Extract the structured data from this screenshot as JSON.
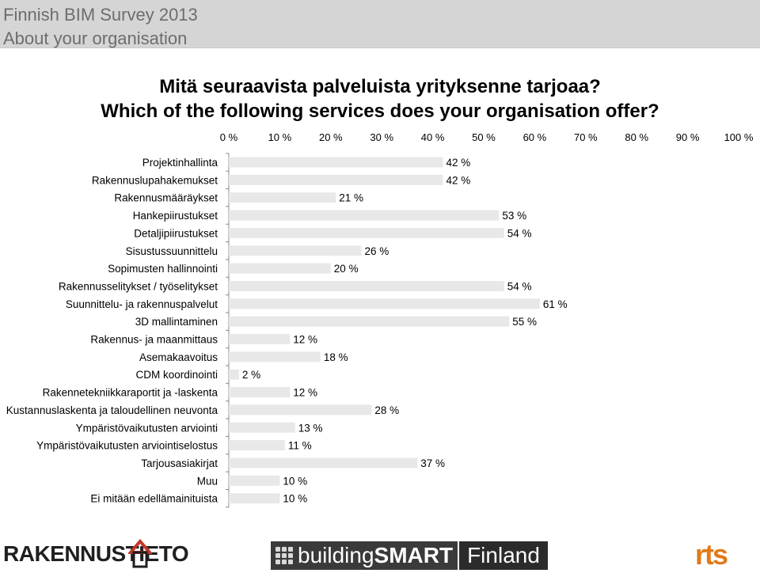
{
  "header": {
    "line1": "Finnish BIM Survey 2013",
    "line2": "About your organisation"
  },
  "title": {
    "line1": "Mitä seuraavista palveluista yrityksenne tarjoaa?",
    "line2": "Which of the following services does your organisation offer?"
  },
  "colors": {
    "bar": "#e8e8e8",
    "header_bg": "#d5d5d5",
    "header_text": "#6d6d6d",
    "bsf_bg": "#3a3a3a",
    "rts_orange": "#e07a1a"
  },
  "chart_data": {
    "type": "bar",
    "orientation": "horizontal",
    "categories": [
      "Projektinhallinta",
      "Rakennuslupahakemukset",
      "Rakennusmääräykset",
      "Hankepiirustukset",
      "Detaljipiirustukset",
      "Sisustussuunnittelu",
      "Sopimusten hallinnointi",
      "Rakennusselitykset / työselitykset",
      "Suunnittelu- ja rakennuspalvelut",
      "3D mallintaminen",
      "Rakennus- ja maanmittaus",
      "Asemakaavoitus",
      "CDM koordinointi",
      "Rakennetekniikkaraportit ja -laskenta",
      "Kustannuslaskenta ja taloudellinen neuvonta",
      "Ympäristövaikutusten arviointi",
      "Ympäristövaikutusten arviointiselostus",
      "Tarjousasiakirjat",
      "Muu",
      "Ei mitään edellämainituista"
    ],
    "values": [
      42,
      42,
      21,
      53,
      54,
      26,
      20,
      54,
      61,
      55,
      12,
      18,
      2,
      12,
      28,
      13,
      11,
      37,
      10,
      10
    ],
    "value_labels": [
      "42 %",
      "42 %",
      "21 %",
      "53 %",
      "54 %",
      "26 %",
      "20 %",
      "54 %",
      "61 %",
      "55 %",
      "12 %",
      "18 %",
      "2 %",
      "12 %",
      "28 %",
      "13 %",
      "11 %",
      "37 %",
      "10 %",
      "10 %"
    ],
    "x_ticks": [
      "0 %",
      "10 %",
      "20 %",
      "30 %",
      "40 %",
      "50 %",
      "60 %",
      "70 %",
      "80 %",
      "90 %",
      "100 %"
    ],
    "xlim": [
      0,
      100
    ],
    "axis_position": "top",
    "grid": false,
    "legend": "none"
  },
  "footer": {
    "logo1": "RAKENNUSTIETO",
    "logo2_light": "building",
    "logo2_bold": "SMART",
    "logo2_country": "Finland",
    "logo3": "rts"
  }
}
